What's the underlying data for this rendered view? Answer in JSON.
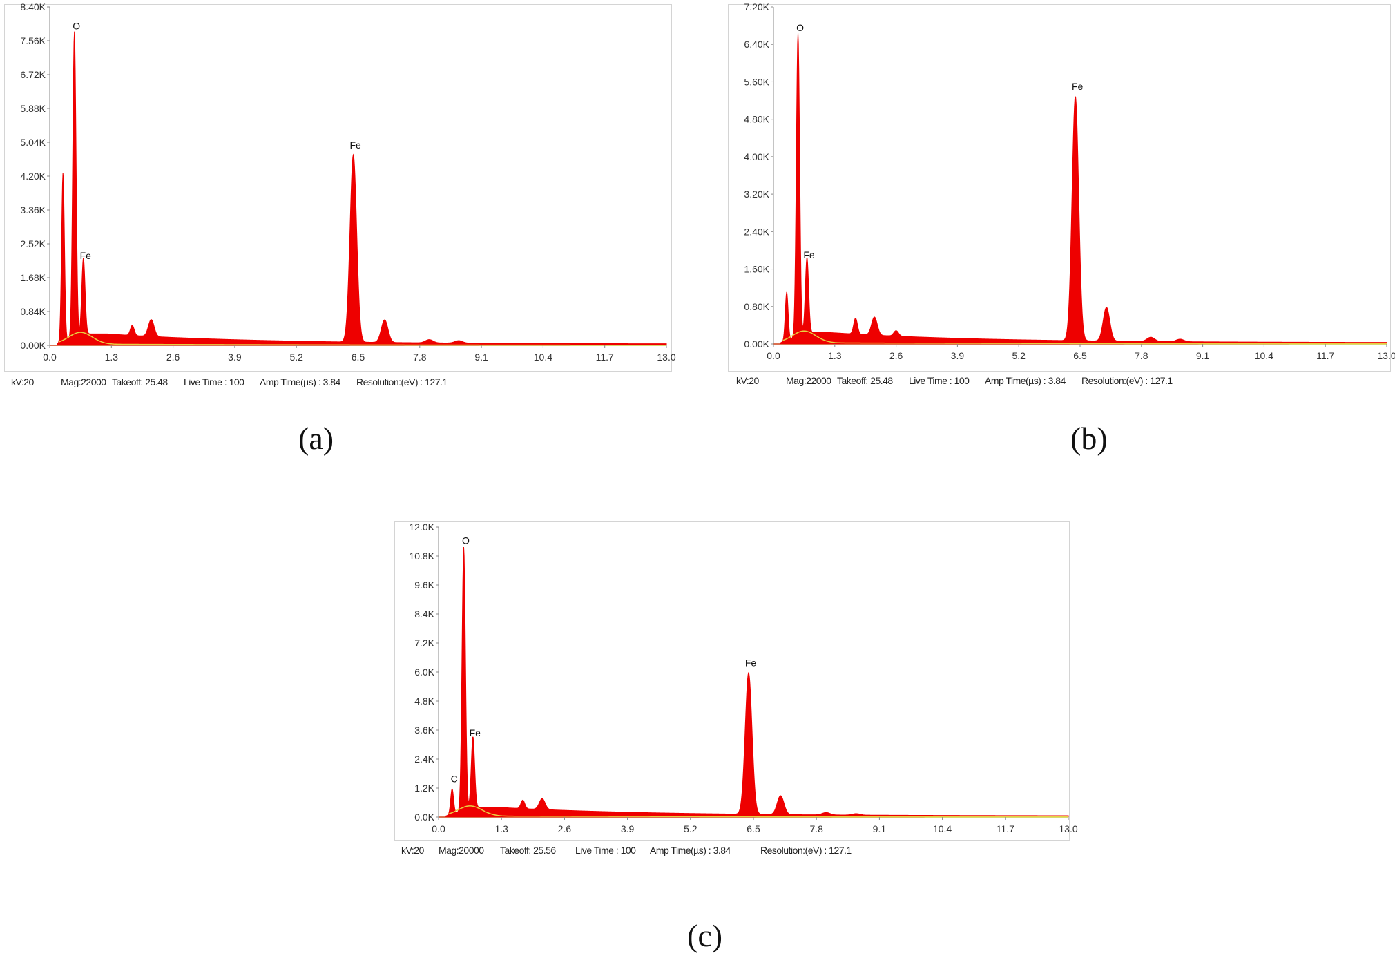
{
  "chart_data": [
    {
      "type": "area",
      "panel_label": "(a)",
      "xticks": [
        "0.0",
        "1.3",
        "2.6",
        "3.9",
        "5.2",
        "6.5",
        "7.8",
        "9.1",
        "10.4",
        "11.7",
        "13.0"
      ],
      "yticks": [
        "0.00K",
        "0.84K",
        "1.68K",
        "2.52K",
        "3.36K",
        "4.20K",
        "5.04K",
        "5.88K",
        "6.72K",
        "7.56K",
        "8.40K"
      ],
      "xlim": [
        0,
        13
      ],
      "ylim": [
        0,
        8400
      ],
      "peaks": [
        {
          "x": 0.28,
          "y": 4200,
          "w": 0.03
        },
        {
          "x": 0.52,
          "y": 7600,
          "w": 0.035,
          "label": "O"
        },
        {
          "x": 0.71,
          "y": 1900,
          "w": 0.035,
          "label": "Fe"
        },
        {
          "x": 1.74,
          "y": 250,
          "w": 0.04
        },
        {
          "x": 2.14,
          "y": 420,
          "w": 0.06
        },
        {
          "x": 6.4,
          "y": 4650,
          "w": 0.07,
          "label": "Fe"
        },
        {
          "x": 7.06,
          "y": 560,
          "w": 0.07
        },
        {
          "x": 8.0,
          "y": 80,
          "w": 0.08
        },
        {
          "x": 8.62,
          "y": 60,
          "w": 0.08
        }
      ],
      "params": [
        "kV:20",
        "Mag:22000",
        "Takeoff: 25.48",
        "Live Time : 100",
        "Amp Time(µs) : 3.84",
        "Resolution:(eV) : 127.1"
      ]
    },
    {
      "type": "area",
      "panel_label": "(b)",
      "xticks": [
        "0.0",
        "1.3",
        "2.6",
        "3.9",
        "5.2",
        "6.5",
        "7.8",
        "9.1",
        "10.4",
        "11.7",
        "13.0"
      ],
      "yticks": [
        "0.00K",
        "0.80K",
        "1.60K",
        "2.40K",
        "3.20K",
        "4.00K",
        "4.80K",
        "5.60K",
        "6.40K",
        "7.20K"
      ],
      "xlim": [
        0,
        13
      ],
      "ylim": [
        0,
        8000
      ],
      "peaks": [
        {
          "x": 0.28,
          "y": 1150,
          "w": 0.03
        },
        {
          "x": 0.52,
          "y": 7200,
          "w": 0.035,
          "label": "O"
        },
        {
          "x": 0.71,
          "y": 1800,
          "w": 0.035,
          "label": "Fe"
        },
        {
          "x": 1.74,
          "y": 380,
          "w": 0.04
        },
        {
          "x": 2.14,
          "y": 430,
          "w": 0.06
        },
        {
          "x": 2.6,
          "y": 130,
          "w": 0.05
        },
        {
          "x": 6.4,
          "y": 5800,
          "w": 0.07,
          "label": "Fe"
        },
        {
          "x": 7.06,
          "y": 800,
          "w": 0.07
        },
        {
          "x": 8.0,
          "y": 100,
          "w": 0.08
        },
        {
          "x": 8.62,
          "y": 60,
          "w": 0.08
        }
      ],
      "params": [
        "kV:20",
        "Mag:22000",
        "Takeoff: 25.48",
        "Live Time : 100",
        "Amp Time(µs) : 3.84",
        "Resolution:(eV) : 127.1"
      ]
    },
    {
      "type": "area",
      "panel_label": "(c)",
      "xticks": [
        "0.0",
        "1.3",
        "2.6",
        "3.9",
        "5.2",
        "6.5",
        "7.8",
        "9.1",
        "10.4",
        "11.7",
        "13.0"
      ],
      "yticks": [
        "0.0K",
        "1.2K",
        "2.4K",
        "3.6K",
        "4.8K",
        "6.0K",
        "7.2K",
        "8.4K",
        "9.6K",
        "10.8K",
        "12.0K"
      ],
      "xlim": [
        0,
        13
      ],
      "ylim": [
        0,
        12000
      ],
      "peaks": [
        {
          "x": 0.28,
          "y": 1050,
          "w": 0.03,
          "label": "C"
        },
        {
          "x": 0.52,
          "y": 10900,
          "w": 0.035,
          "label": "O"
        },
        {
          "x": 0.71,
          "y": 2950,
          "w": 0.035,
          "label": "Fe"
        },
        {
          "x": 1.74,
          "y": 350,
          "w": 0.04
        },
        {
          "x": 2.14,
          "y": 450,
          "w": 0.06
        },
        {
          "x": 6.4,
          "y": 5850,
          "w": 0.07,
          "label": "Fe"
        },
        {
          "x": 7.06,
          "y": 780,
          "w": 0.07
        },
        {
          "x": 8.0,
          "y": 100,
          "w": 0.08
        },
        {
          "x": 8.62,
          "y": 60,
          "w": 0.08
        }
      ],
      "params": [
        "kV:20",
        "Mag:20000",
        "Takeoff: 25.56",
        "Live Time : 100",
        "Amp Time(µs) : 3.84",
        "Resolution:(eV) : 127.1"
      ]
    }
  ],
  "colors": {
    "fill": "#ee0000",
    "frame": "#bcd0e6",
    "bremsstrahlung": "#e8d040",
    "baseline": "#c8e0a0"
  }
}
